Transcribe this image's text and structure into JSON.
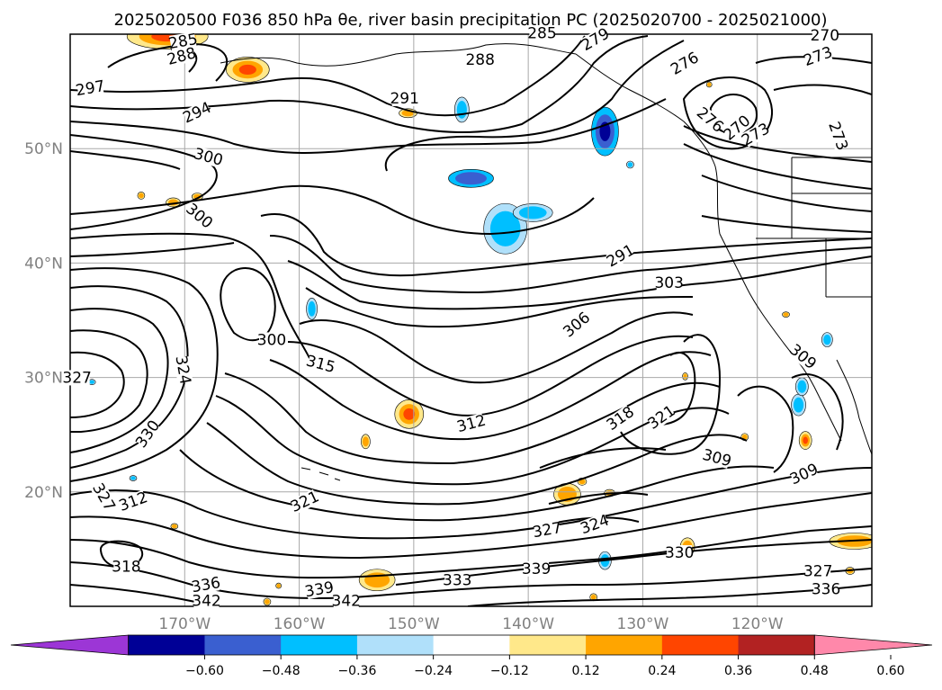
{
  "title": "2025020500 F036 850 hPa θe, river basin precipitation PC (2025020700 - 2025021000)",
  "chart_data": {
    "type": "contour_map",
    "title": "2025020500 F036 850 hPa θe, river basin precipitation PC (2025020700 - 2025021000)",
    "xlim": [
      -180,
      -110
    ],
    "ylim": [
      10,
      60
    ],
    "lon_ticks": [
      {
        "value": -170,
        "label": "170°W"
      },
      {
        "value": -160,
        "label": "160°W"
      },
      {
        "value": -150,
        "label": "150°W"
      },
      {
        "value": -140,
        "label": "140°W"
      },
      {
        "value": -130,
        "label": "130°W"
      },
      {
        "value": -120,
        "label": "120°W"
      }
    ],
    "lat_ticks": [
      {
        "value": 20,
        "label": "20°N"
      },
      {
        "value": 30,
        "label": "30°N"
      },
      {
        "value": 40,
        "label": "40°N"
      },
      {
        "value": 50,
        "label": "50°N"
      }
    ],
    "colorbar": {
      "ticks": [
        "−0.60",
        "−0.48",
        "−0.36",
        "−0.24",
        "−0.12",
        "0.12",
        "0.24",
        "0.36",
        "0.48",
        "0.60"
      ],
      "under_color": "#9c36d6",
      "over_color": "#ff88aa",
      "colors": [
        "#000096",
        "#3a5fd0",
        "#00bfff",
        "#b0e0fa",
        "#ffffff",
        "#ffe88a",
        "#ffa500",
        "#ff4500",
        "#b22222"
      ]
    },
    "contour_labels": [
      {
        "text": "285",
        "lon": -170.1,
        "lat": 59.1,
        "angle": -10
      },
      {
        "text": "288",
        "lon": -170.2,
        "lat": 57.8,
        "angle": -15
      },
      {
        "text": "297",
        "lon": -178.2,
        "lat": 55.0,
        "angle": -10
      },
      {
        "text": "294",
        "lon": -168.8,
        "lat": 52.9,
        "angle": -25
      },
      {
        "text": "300",
        "lon": -168.0,
        "lat": 49.0,
        "angle": 15
      },
      {
        "text": "300",
        "lon": -168.9,
        "lat": 43.9,
        "angle": 40
      },
      {
        "text": "288",
        "lon": -144.2,
        "lat": 57.5,
        "angle": 0
      },
      {
        "text": "291",
        "lon": -150.8,
        "lat": 54.1,
        "angle": 0
      },
      {
        "text": "285",
        "lon": -138.8,
        "lat": 59.8,
        "angle": 0
      },
      {
        "text": "279",
        "lon": -134.0,
        "lat": 59.3,
        "angle": -30
      },
      {
        "text": "276",
        "lon": -126.2,
        "lat": 57.2,
        "angle": -30
      },
      {
        "text": "270",
        "lon": -114.1,
        "lat": 59.6,
        "angle": 0
      },
      {
        "text": "273",
        "lon": -114.6,
        "lat": 57.8,
        "angle": -20
      },
      {
        "text": "276",
        "lon": -124.3,
        "lat": 52.3,
        "angle": 40
      },
      {
        "text": "270",
        "lon": -121.6,
        "lat": 51.6,
        "angle": -40
      },
      {
        "text": "273",
        "lon": -120.0,
        "lat": 51.0,
        "angle": -30
      },
      {
        "text": "273",
        "lon": -113.2,
        "lat": 51.0,
        "angle": 70
      },
      {
        "text": "291",
        "lon": -131.8,
        "lat": 40.4,
        "angle": -30
      },
      {
        "text": "300",
        "lon": -162.4,
        "lat": 33.0,
        "angle": 0
      },
      {
        "text": "303",
        "lon": -127.7,
        "lat": 38.0,
        "angle": 0
      },
      {
        "text": "306",
        "lon": -135.6,
        "lat": 34.4,
        "angle": -40
      },
      {
        "text": "309",
        "lon": -116.2,
        "lat": 31.6,
        "angle": 40
      },
      {
        "text": "315",
        "lon": -158.2,
        "lat": 30.9,
        "angle": 15
      },
      {
        "text": "324",
        "lon": -170.4,
        "lat": 30.6,
        "angle": 80
      },
      {
        "text": "327",
        "lon": -179.4,
        "lat": 29.7,
        "angle": 0
      },
      {
        "text": "312",
        "lon": -144.9,
        "lat": 25.7,
        "angle": -15
      },
      {
        "text": "318",
        "lon": -131.8,
        "lat": 26.2,
        "angle": -35
      },
      {
        "text": "321",
        "lon": -128.2,
        "lat": 26.3,
        "angle": -35
      },
      {
        "text": "330",
        "lon": -173.0,
        "lat": 24.9,
        "angle": -55
      },
      {
        "text": "309",
        "lon": -123.6,
        "lat": 22.7,
        "angle": 15
      },
      {
        "text": "309",
        "lon": -115.8,
        "lat": 21.3,
        "angle": -25
      },
      {
        "text": "312",
        "lon": -174.4,
        "lat": 18.9,
        "angle": -20
      },
      {
        "text": "321",
        "lon": -159.4,
        "lat": 18.9,
        "angle": -25
      },
      {
        "text": "327",
        "lon": -177.3,
        "lat": 19.4,
        "angle": 60
      },
      {
        "text": "327",
        "lon": -138.3,
        "lat": 16.4,
        "angle": -10
      },
      {
        "text": "324",
        "lon": -134.1,
        "lat": 16.9,
        "angle": -20
      },
      {
        "text": "318",
        "lon": -175.1,
        "lat": 13.2,
        "angle": 0
      },
      {
        "text": "330",
        "lon": -126.8,
        "lat": 14.4,
        "angle": 0
      },
      {
        "text": "339",
        "lon": -139.3,
        "lat": 13.0,
        "angle": 0
      },
      {
        "text": "327",
        "lon": -114.7,
        "lat": 12.8,
        "angle": 0
      },
      {
        "text": "333",
        "lon": -146.2,
        "lat": 12.0,
        "angle": 0
      },
      {
        "text": "339",
        "lon": -158.2,
        "lat": 11.2,
        "angle": -10
      },
      {
        "text": "336",
        "lon": -168.1,
        "lat": 11.6,
        "angle": -10
      },
      {
        "text": "342",
        "lon": -168.1,
        "lat": 10.2,
        "angle": 0
      },
      {
        "text": "342",
        "lon": -155.9,
        "lat": 10.2,
        "angle": 0
      },
      {
        "text": "336",
        "lon": -114.0,
        "lat": 11.2,
        "angle": 0
      }
    ],
    "precip_anomalies": [
      {
        "lon": -171.5,
        "lat": 59.8,
        "sx": 45,
        "sy": 14,
        "cat": "pos3"
      },
      {
        "lon": -164.5,
        "lat": 56.9,
        "sx": 24,
        "sy": 14,
        "cat": "pos3"
      },
      {
        "lon": -150.5,
        "lat": 53.1,
        "sx": 10,
        "sy": 5,
        "cat": "pos2"
      },
      {
        "lon": -145.8,
        "lat": 53.4,
        "sx": 8,
        "sy": 14,
        "cat": "neg2"
      },
      {
        "lon": -145.0,
        "lat": 47.4,
        "sx": 25,
        "sy": 10,
        "cat": "neg3"
      },
      {
        "lon": -142.0,
        "lat": 43.0,
        "sx": 24,
        "sy": 28,
        "cat": "neg2"
      },
      {
        "lon": -139.6,
        "lat": 44.4,
        "sx": 22,
        "sy": 10,
        "cat": "neg2"
      },
      {
        "lon": -133.3,
        "lat": 51.5,
        "sx": 15,
        "sy": 27,
        "cat": "neg4"
      },
      {
        "lon": -158.9,
        "lat": 36.0,
        "sx": 6,
        "sy": 12,
        "cat": "neg2"
      },
      {
        "lon": -150.4,
        "lat": 26.8,
        "sx": 16,
        "sy": 16,
        "cat": "pos3"
      },
      {
        "lon": -154.2,
        "lat": 24.4,
        "sx": 5,
        "sy": 8,
        "cat": "pos2"
      },
      {
        "lon": -171.0,
        "lat": 45.3,
        "sx": 8,
        "sy": 5,
        "cat": "pos2"
      },
      {
        "lon": -168.9,
        "lat": 45.8,
        "sx": 6,
        "sy": 4,
        "cat": "pos2"
      },
      {
        "lon": -173.8,
        "lat": 45.9,
        "sx": 4,
        "sy": 4,
        "cat": "pos2"
      },
      {
        "lon": -153.2,
        "lat": 12.3,
        "sx": 20,
        "sy": 12,
        "cat": "pos2"
      },
      {
        "lon": -136.6,
        "lat": 19.8,
        "sx": 15,
        "sy": 12,
        "cat": "pos2"
      },
      {
        "lon": -132.9,
        "lat": 19.9,
        "sx": 6,
        "sy": 4,
        "cat": "pos2"
      },
      {
        "lon": -135.3,
        "lat": 20.9,
        "sx": 5,
        "sy": 4,
        "cat": "pos2"
      },
      {
        "lon": -126.1,
        "lat": 15.2,
        "sx": 8,
        "sy": 10,
        "cat": "pos2"
      },
      {
        "lon": -111.5,
        "lat": 15.7,
        "sx": 28,
        "sy": 9,
        "cat": "pos2"
      },
      {
        "lon": -121.1,
        "lat": 24.8,
        "sx": 4,
        "sy": 4,
        "cat": "pos2"
      },
      {
        "lon": -111.9,
        "lat": 13.1,
        "sx": 5,
        "sy": 4,
        "cat": "pos2"
      },
      {
        "lon": -124.2,
        "lat": 55.6,
        "sx": 3,
        "sy": 3,
        "cat": "pos2"
      },
      {
        "lon": -131.1,
        "lat": 48.6,
        "sx": 4,
        "sy": 4,
        "cat": "neg2"
      },
      {
        "lon": -115.8,
        "lat": 24.5,
        "sx": 7,
        "sy": 10,
        "cat": "pos3"
      },
      {
        "lon": -113.9,
        "lat": 33.3,
        "sx": 6,
        "sy": 8,
        "cat": "neg2"
      },
      {
        "lon": -116.4,
        "lat": 27.6,
        "sx": 8,
        "sy": 12,
        "cat": "neg2"
      },
      {
        "lon": -116.1,
        "lat": 29.2,
        "sx": 7,
        "sy": 10,
        "cat": "neg2"
      },
      {
        "lon": -178.1,
        "lat": 29.6,
        "sx": 4,
        "sy": 3,
        "cat": "neg2"
      },
      {
        "lon": -133.3,
        "lat": 14.0,
        "sx": 7,
        "sy": 10,
        "cat": "neg2"
      },
      {
        "lon": -174.5,
        "lat": 21.2,
        "sx": 4,
        "sy": 3,
        "cat": "neg2"
      },
      {
        "lon": -161.8,
        "lat": 11.8,
        "sx": 3,
        "sy": 3,
        "cat": "pos2"
      },
      {
        "lon": -162.8,
        "lat": 10.4,
        "sx": 4,
        "sy": 4,
        "cat": "pos2"
      },
      {
        "lon": -134.3,
        "lat": 10.8,
        "sx": 4,
        "sy": 4,
        "cat": "pos2"
      },
      {
        "lon": -126.3,
        "lat": 30.1,
        "sx": 3,
        "sy": 4,
        "cat": "pos2"
      },
      {
        "lon": -117.5,
        "lat": 35.5,
        "sx": 4,
        "sy": 3,
        "cat": "pos2"
      },
      {
        "lon": -170.9,
        "lat": 17.0,
        "sx": 4,
        "sy": 3,
        "cat": "pos2"
      }
    ]
  }
}
